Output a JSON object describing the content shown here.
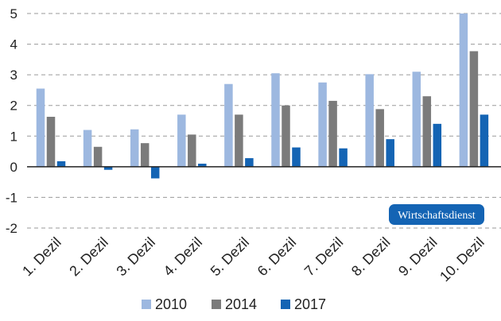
{
  "chart_data": {
    "type": "bar",
    "categories": [
      "1. Dezil",
      "2. Dezil",
      "3. Dezil",
      "4. Dezil",
      "5. Dezil",
      "6. Dezil",
      "7. Dezil",
      "8. Dezil",
      "9. Dezil",
      "10. Dezil"
    ],
    "series": [
      {
        "name": "2010",
        "color": "#9db8e0",
        "values": [
          2.55,
          1.2,
          1.22,
          1.7,
          2.7,
          3.05,
          2.75,
          3.02,
          3.1,
          5.0
        ]
      },
      {
        "name": "2014",
        "color": "#7b7b7b",
        "values": [
          1.63,
          0.65,
          0.77,
          1.05,
          1.7,
          2.0,
          2.15,
          1.88,
          2.3,
          3.77
        ]
      },
      {
        "name": "2017",
        "color": "#1464b4",
        "values": [
          0.18,
          -0.1,
          -0.38,
          0.1,
          0.28,
          0.63,
          0.6,
          0.9,
          1.4,
          1.7
        ]
      }
    ],
    "y_ticks": [
      "5",
      "4",
      "3",
      "2",
      "1",
      "0",
      "-1",
      "-2"
    ],
    "ylim": [
      -2,
      5
    ],
    "grid": "dashed horizontal",
    "legend_position": "bottom",
    "title": "",
    "xlabel": "",
    "ylabel": ""
  },
  "watermark": {
    "text": "Wirtschaftsdienst",
    "bg_color": "#1464b4"
  }
}
